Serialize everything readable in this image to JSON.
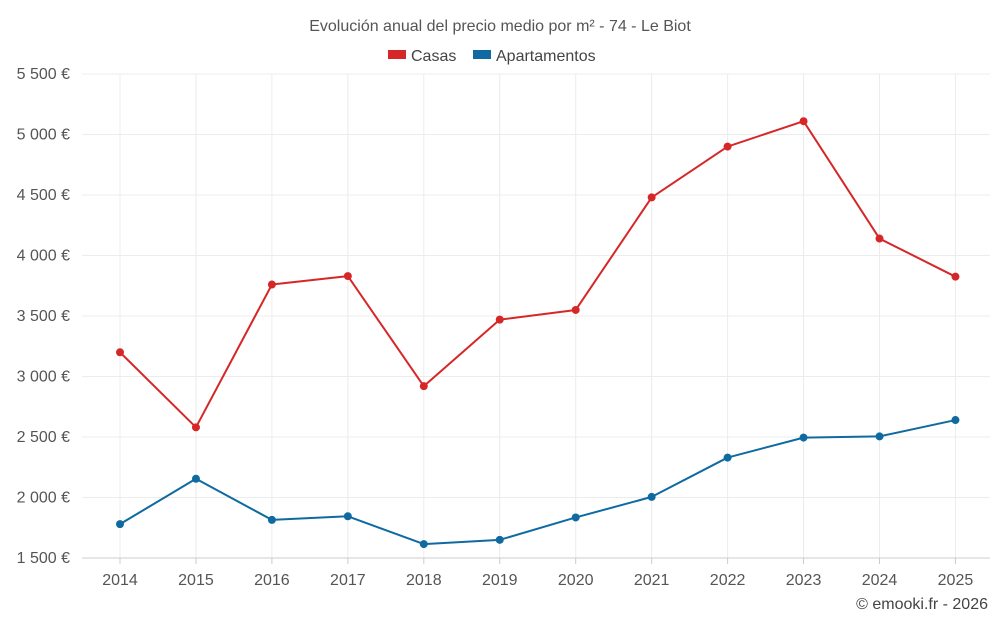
{
  "chart_data": {
    "type": "line",
    "title": "Evolución anual del precio medio por m² - 74 - Le Biot",
    "categories": [
      "2014",
      "2015",
      "2016",
      "2017",
      "2018",
      "2019",
      "2020",
      "2021",
      "2022",
      "2023",
      "2024",
      "2025"
    ],
    "series": [
      {
        "name": "Casas",
        "color": "#d62728",
        "values": [
          3200,
          2580,
          3760,
          3830,
          2920,
          3470,
          3550,
          4480,
          4900,
          5110,
          4140,
          3825
        ]
      },
      {
        "name": "Apartamentos",
        "color": "#0e6aa0",
        "values": [
          1780,
          2155,
          1815,
          1845,
          1615,
          1650,
          1835,
          2005,
          2330,
          2495,
          2505,
          2640
        ]
      }
    ],
    "ylim": [
      1500,
      5500
    ],
    "yticks": [
      1500,
      2000,
      2500,
      3000,
      3500,
      4000,
      4500,
      5000,
      5500
    ],
    "ytick_labels": [
      "1 500 €",
      "2 000 €",
      "2 500 €",
      "3 000 €",
      "3 500 €",
      "4 000 €",
      "4 500 €",
      "5 000 €",
      "5 500 €"
    ],
    "xlabel": "",
    "ylabel": "",
    "grid": true,
    "legend_position": "top-center"
  },
  "footer": {
    "credit": "© emooki.fr - 2026"
  }
}
